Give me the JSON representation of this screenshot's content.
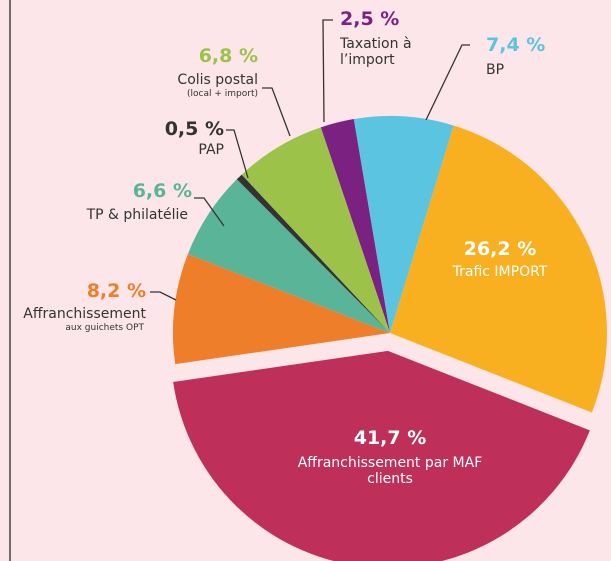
{
  "chart_data": {
    "type": "pie",
    "categories": [
      "Taxation à l’import",
      "BP",
      "Trafic IMPORT",
      "Affranchissement par MAF clients",
      "Affranchissement",
      "TP & philatélie",
      "PAP",
      "Colis postal"
    ],
    "sublabels": [
      null,
      null,
      null,
      null,
      "aux guichets OPT",
      null,
      null,
      "(local + import)"
    ],
    "values": [
      2.5,
      7.4,
      26.2,
      41.7,
      8.2,
      6.6,
      0.5,
      6.8
    ],
    "value_labels": [
      "2,5 %",
      "7,4 %",
      "26,2 %",
      "41,7 %",
      "8,2 %",
      "6,6 %",
      "0,5 %",
      "6,8 %"
    ],
    "colors": [
      "#7b2181",
      "#5bc4e0",
      "#f9b020",
      "#be2f5a",
      "#ef7e2a",
      "#5ab598",
      "#333333",
      "#9dc24a"
    ],
    "exploded_index": 3
  }
}
